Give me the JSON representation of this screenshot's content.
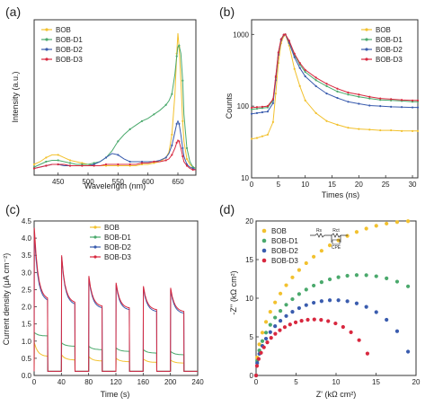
{
  "colors": {
    "BOB": "#f2c12e",
    "BOB-D1": "#4aa96c",
    "BOB-D2": "#3a5cae",
    "BOB-D3": "#d8283f"
  },
  "chart_data": [
    {
      "panel": "(a)",
      "type": "line",
      "xlabel": "Wavelength (nm)",
      "ylabel": "Intensity (a.u.)",
      "xlim": [
        410,
        680
      ],
      "xticks": [
        "450",
        "500",
        "550",
        "600",
        "650"
      ],
      "xtick_values": [
        450,
        500,
        550,
        600,
        650
      ],
      "ylim": [
        0,
        1.15
      ],
      "y_tick_labels_shown": false,
      "legend": {
        "placement": "top-left",
        "entries": [
          "BOB",
          "BOB-D1",
          "BOB-D2",
          "BOB-D3"
        ]
      },
      "series": [
        {
          "name": "BOB",
          "x": [
            410,
            420,
            430,
            440,
            450,
            460,
            470,
            480,
            490,
            500,
            510,
            520,
            530,
            540,
            550,
            560,
            570,
            580,
            590,
            600,
            610,
            620,
            630,
            635,
            640,
            645,
            648,
            650,
            652,
            655,
            658,
            660,
            665,
            670,
            675,
            680
          ],
          "values": [
            0.08,
            0.1,
            0.13,
            0.15,
            0.15,
            0.13,
            0.11,
            0.1,
            0.09,
            0.08,
            0.07,
            0.07,
            0.07,
            0.07,
            0.07,
            0.07,
            0.07,
            0.07,
            0.08,
            0.08,
            0.09,
            0.1,
            0.13,
            0.17,
            0.3,
            0.6,
            0.9,
            1.05,
            0.95,
            0.7,
            0.4,
            0.25,
            0.12,
            0.08,
            0.06,
            0.05
          ]
        },
        {
          "name": "BOB-D1",
          "x": [
            410,
            420,
            430,
            440,
            450,
            460,
            470,
            480,
            490,
            500,
            510,
            520,
            530,
            540,
            550,
            560,
            570,
            580,
            590,
            600,
            610,
            620,
            630,
            635,
            640,
            645,
            648,
            650,
            652,
            655,
            658,
            660,
            665,
            670,
            675,
            680
          ],
          "values": [
            0.06,
            0.08,
            0.1,
            0.11,
            0.11,
            0.1,
            0.09,
            0.08,
            0.08,
            0.08,
            0.09,
            0.1,
            0.13,
            0.18,
            0.25,
            0.3,
            0.34,
            0.37,
            0.4,
            0.42,
            0.45,
            0.48,
            0.52,
            0.55,
            0.6,
            0.75,
            0.88,
            0.95,
            0.96,
            0.9,
            0.7,
            0.45,
            0.2,
            0.1,
            0.06,
            0.05
          ]
        },
        {
          "name": "BOB-D2",
          "x": [
            410,
            420,
            430,
            440,
            450,
            460,
            470,
            480,
            490,
            500,
            510,
            520,
            530,
            540,
            550,
            560,
            570,
            580,
            590,
            600,
            610,
            620,
            630,
            635,
            640,
            645,
            648,
            650,
            652,
            655,
            658,
            660,
            665,
            670,
            675,
            680
          ],
          "values": [
            0.05,
            0.06,
            0.07,
            0.08,
            0.08,
            0.07,
            0.07,
            0.07,
            0.07,
            0.07,
            0.08,
            0.1,
            0.13,
            0.16,
            0.15,
            0.12,
            0.1,
            0.1,
            0.1,
            0.1,
            0.1,
            0.11,
            0.13,
            0.16,
            0.22,
            0.32,
            0.38,
            0.4,
            0.38,
            0.3,
            0.2,
            0.14,
            0.08,
            0.06,
            0.05,
            0.04
          ]
        },
        {
          "name": "BOB-D3",
          "x": [
            410,
            420,
            430,
            440,
            450,
            460,
            470,
            480,
            490,
            500,
            510,
            520,
            530,
            540,
            550,
            560,
            570,
            580,
            590,
            600,
            610,
            620,
            630,
            635,
            640,
            645,
            648,
            650,
            652,
            655,
            658,
            660,
            665,
            670,
            675,
            680
          ],
          "values": [
            0.05,
            0.06,
            0.07,
            0.08,
            0.08,
            0.08,
            0.07,
            0.07,
            0.07,
            0.07,
            0.07,
            0.07,
            0.08,
            0.08,
            0.08,
            0.08,
            0.08,
            0.08,
            0.09,
            0.09,
            0.1,
            0.1,
            0.11,
            0.12,
            0.15,
            0.2,
            0.24,
            0.26,
            0.25,
            0.2,
            0.14,
            0.1,
            0.07,
            0.05,
            0.04,
            0.04
          ]
        }
      ]
    },
    {
      "panel": "(b)",
      "type": "line",
      "xlabel": "Times (ns)",
      "ylabel": "Counts",
      "xlim": [
        0,
        31
      ],
      "xticks": [
        "0",
        "5",
        "10",
        "15",
        "20",
        "25",
        "30"
      ],
      "xtick_values": [
        0,
        5,
        10,
        15,
        20,
        25,
        30
      ],
      "yscale": "log",
      "ylim": [
        10,
        1600
      ],
      "yticks": [
        "10",
        "100",
        "1000"
      ],
      "ytick_values": [
        10,
        100,
        1000
      ],
      "legend": {
        "placement": "top-right",
        "entries": [
          "BOB",
          "BOB-D1",
          "BOB-D2",
          "BOB-D3"
        ]
      },
      "series": [
        {
          "name": "BOB",
          "x": [
            0,
            1,
            2,
            3,
            4,
            4.5,
            5,
            5.5,
            6,
            6.3,
            7,
            8,
            9,
            10,
            12,
            14,
            16,
            18,
            20,
            22,
            24,
            26,
            28,
            30,
            31
          ],
          "values": [
            35,
            36,
            38,
            40,
            60,
            150,
            400,
            750,
            950,
            1000,
            700,
            330,
            190,
            120,
            80,
            62,
            55,
            50,
            48,
            47,
            46,
            46,
            45,
            45,
            45
          ]
        },
        {
          "name": "BOB-D1",
          "x": [
            0,
            1,
            2,
            3,
            4,
            4.5,
            5,
            5.5,
            6,
            6.3,
            7,
            8,
            9,
            10,
            12,
            14,
            16,
            18,
            20,
            22,
            24,
            26,
            28,
            30,
            31
          ],
          "values": [
            90,
            92,
            94,
            96,
            120,
            250,
            550,
            850,
            990,
            1000,
            800,
            520,
            380,
            300,
            230,
            190,
            160,
            145,
            135,
            128,
            122,
            120,
            118,
            115,
            115
          ]
        },
        {
          "name": "BOB-D2",
          "x": [
            0,
            1,
            2,
            3,
            4,
            4.5,
            5,
            5.5,
            6,
            6.3,
            7,
            8,
            9,
            10,
            12,
            14,
            16,
            18,
            20,
            22,
            24,
            26,
            28,
            30,
            31
          ],
          "values": [
            78,
            80,
            82,
            84,
            110,
            230,
            520,
            830,
            980,
            1000,
            760,
            480,
            340,
            260,
            190,
            150,
            130,
            115,
            108,
            102,
            100,
            98,
            97,
            96,
            96
          ]
        },
        {
          "name": "BOB-D3",
          "x": [
            0,
            1,
            2,
            3,
            4,
            4.5,
            5,
            5.5,
            6,
            6.3,
            7,
            8,
            9,
            10,
            12,
            14,
            16,
            18,
            20,
            22,
            24,
            26,
            28,
            30,
            31
          ],
          "values": [
            95,
            97,
            98,
            100,
            125,
            260,
            560,
            860,
            990,
            1000,
            820,
            540,
            400,
            320,
            250,
            205,
            175,
            155,
            145,
            135,
            128,
            125,
            122,
            120,
            120
          ]
        }
      ]
    },
    {
      "panel": "(c)",
      "type": "line",
      "xlabel": "Time (s)",
      "ylabel": "Current density (μA cm⁻²)",
      "xlim": [
        0,
        240
      ],
      "xticks": [
        "0",
        "40",
        "80",
        "120",
        "160",
        "200",
        "240"
      ],
      "xtick_values": [
        0,
        40,
        80,
        120,
        160,
        200,
        240
      ],
      "ylim": [
        0,
        4.5
      ],
      "yticks": [
        "0.0",
        "0.5",
        "1.0",
        "1.5",
        "2.0",
        "2.5",
        "3.0",
        "3.5",
        "4.0",
        "4.5"
      ],
      "ytick_values": [
        0,
        0.5,
        1.0,
        1.5,
        2.0,
        2.5,
        3.0,
        3.5,
        4.0,
        4.5
      ],
      "legend": {
        "placement": "top-center",
        "entries": [
          "BOB",
          "BOB-D1",
          "BOB-D2",
          "BOB-D3"
        ]
      },
      "light_on_times_s": [
        0,
        40,
        80,
        120,
        160,
        200
      ],
      "light_period_s": 20,
      "series": [
        {
          "name": "BOB",
          "peak_values": [
            0.95,
            0.6,
            0.55,
            0.5,
            0.48,
            0.45
          ],
          "plateau_values": [
            0.55,
            0.45,
            0.42,
            0.4,
            0.38,
            0.36
          ]
        },
        {
          "name": "BOB-D1",
          "peak_values": [
            1.25,
            0.95,
            0.85,
            0.8,
            0.75,
            0.7
          ],
          "plateau_values": [
            1.15,
            0.85,
            0.75,
            0.7,
            0.65,
            0.6
          ]
        },
        {
          "name": "BOB-D2",
          "peak_values": [
            4.1,
            3.45,
            2.85,
            2.65,
            2.55,
            2.5
          ],
          "plateau_values": [
            2.15,
            2.05,
            1.95,
            1.9,
            1.85,
            1.8
          ]
        },
        {
          "name": "BOB-D3",
          "peak_values": [
            4.3,
            3.5,
            2.9,
            2.7,
            2.6,
            2.55
          ],
          "plateau_values": [
            2.2,
            2.1,
            2.0,
            1.95,
            1.9,
            1.85
          ]
        }
      ]
    },
    {
      "panel": "(d)",
      "type": "scatter",
      "xlabel": "Z' (kΩ cm²)",
      "ylabel": "-Z'' (kΩ cm²)",
      "xlim": [
        0,
        20
      ],
      "xticks": [
        "0",
        "5",
        "10",
        "15",
        "20"
      ],
      "xtick_values": [
        0,
        5,
        10,
        15,
        20
      ],
      "ylim": [
        0,
        20
      ],
      "yticks": [
        "0",
        "5",
        "10",
        "15",
        "20"
      ],
      "ytick_values": [
        0,
        5,
        10,
        15,
        20
      ],
      "legend": {
        "placement": "top-left",
        "entries": [
          "BOB",
          "BOB-D1",
          "BOB-D2",
          "BOB-D3"
        ]
      },
      "inset": {
        "labels": [
          "Rs",
          "Rct",
          "CPE"
        ]
      },
      "series": [
        {
          "name": "BOB",
          "semicircle_diameter": 40,
          "x_end": 19
        },
        {
          "name": "BOB-D1",
          "semicircle_diameter": 26,
          "x_end": 19
        },
        {
          "name": "BOB-D2",
          "semicircle_diameter": 19.5,
          "x_end": 19
        },
        {
          "name": "BOB-D3",
          "semicircle_diameter": 14.5,
          "x_end": 15
        }
      ]
    }
  ]
}
